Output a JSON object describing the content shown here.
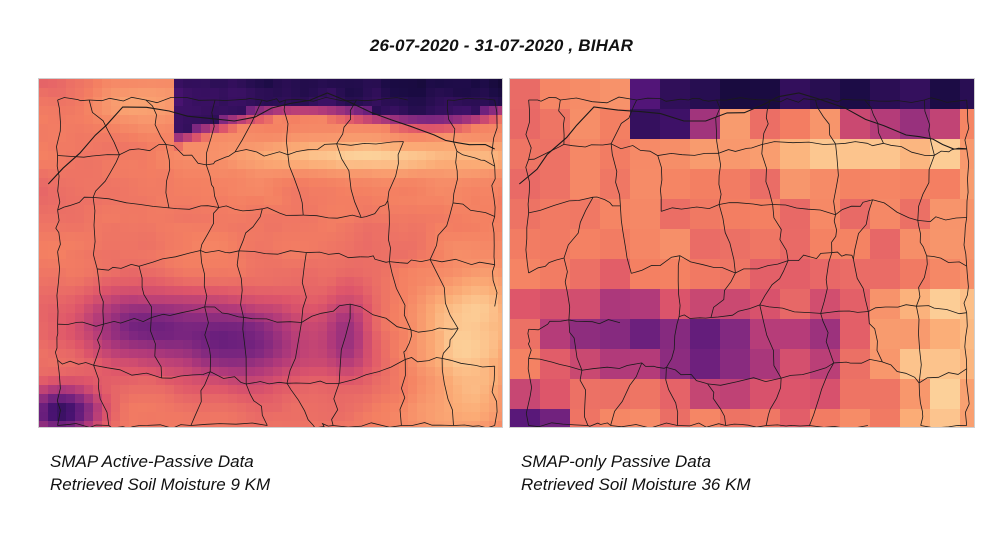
{
  "title": "26-07-2020 - 31-07-2020 , BIHAR",
  "panels": [
    {
      "caption_line1": "SMAP Active-Passive Data",
      "caption_line2": "Retrieved Soil Moisture 9 KM",
      "resolution_km": 9
    },
    {
      "caption_line1": "SMAP-only Passive Data",
      "caption_line2": "Retrieved Soil Moisture 36 KM",
      "resolution_km": 36
    }
  ],
  "colormap": "magma",
  "colors": {
    "dark": "#0c0826",
    "purple": "#5a1f7a",
    "magenta": "#a9437f",
    "coral": "#e87a6a",
    "orange": "#f5a675",
    "light": "#fde7b5",
    "border_line": "#1a1a1a"
  }
}
